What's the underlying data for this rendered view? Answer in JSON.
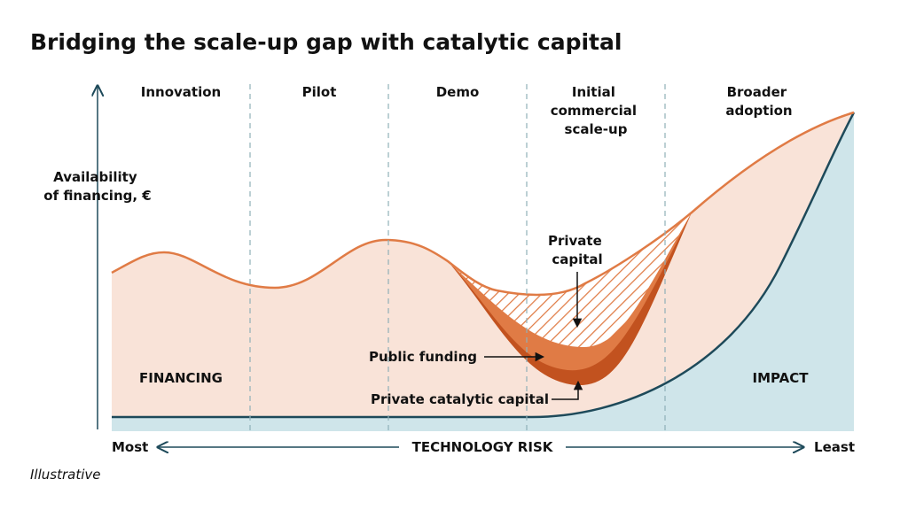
{
  "title": "Bridging the scale-up gap with catalytic capital",
  "stages": [
    {
      "lines": [
        "Innovation"
      ]
    },
    {
      "lines": [
        "Pilot"
      ]
    },
    {
      "lines": [
        "Demo"
      ]
    },
    {
      "lines": [
        "Initial",
        "commercial",
        "scale-up"
      ]
    },
    {
      "lines": [
        "Broader",
        "adoption"
      ]
    }
  ],
  "y_axis_label": [
    "Availability",
    "of financing, €"
  ],
  "areas": {
    "financing": "FINANCING",
    "impact": "IMPACT"
  },
  "annotations": {
    "private_capital": [
      "Private",
      "capital"
    ],
    "public_funding": "Public funding",
    "private_catalytic_capital": "Private catalytic capital"
  },
  "x_axis": {
    "left": "Most",
    "label": "TECHNOLOGY RISK",
    "right": "Least"
  },
  "footnote": "Illustrative"
}
